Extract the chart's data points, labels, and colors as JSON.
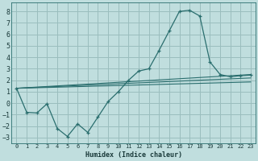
{
  "bg_color": "#c0dede",
  "grid_color": "#9abebe",
  "line_color": "#2a6e6e",
  "xlabel": "Humidex (Indice chaleur)",
  "xlim": [
    -0.5,
    23.5
  ],
  "ylim": [
    -3.5,
    8.8
  ],
  "yticks": [
    -3,
    -2,
    -1,
    0,
    1,
    2,
    3,
    4,
    5,
    6,
    7,
    8
  ],
  "xticks": [
    0,
    1,
    2,
    3,
    4,
    5,
    6,
    7,
    8,
    9,
    10,
    11,
    12,
    13,
    14,
    15,
    16,
    17,
    18,
    19,
    20,
    21,
    22,
    23
  ],
  "curve1_x": [
    0,
    1,
    2,
    3,
    4,
    5,
    6,
    7,
    8,
    9,
    10,
    11,
    12,
    13,
    14,
    15,
    16,
    17,
    18,
    19,
    20,
    21,
    22,
    23
  ],
  "curve1_y": [
    1.3,
    -0.8,
    -0.85,
    -0.05,
    -2.2,
    -2.9,
    -1.8,
    -2.55,
    -1.2,
    0.15,
    1.0,
    2.0,
    2.8,
    3.0,
    4.6,
    6.3,
    8.0,
    8.1,
    7.6,
    3.6,
    2.5,
    2.3,
    2.4,
    2.45
  ],
  "line2_x": [
    0,
    23
  ],
  "line2_y": [
    1.3,
    2.5
  ],
  "line3_x": [
    0,
    23
  ],
  "line3_y": [
    1.3,
    2.2
  ],
  "line4_x": [
    0,
    23
  ],
  "line4_y": [
    1.3,
    1.85
  ]
}
